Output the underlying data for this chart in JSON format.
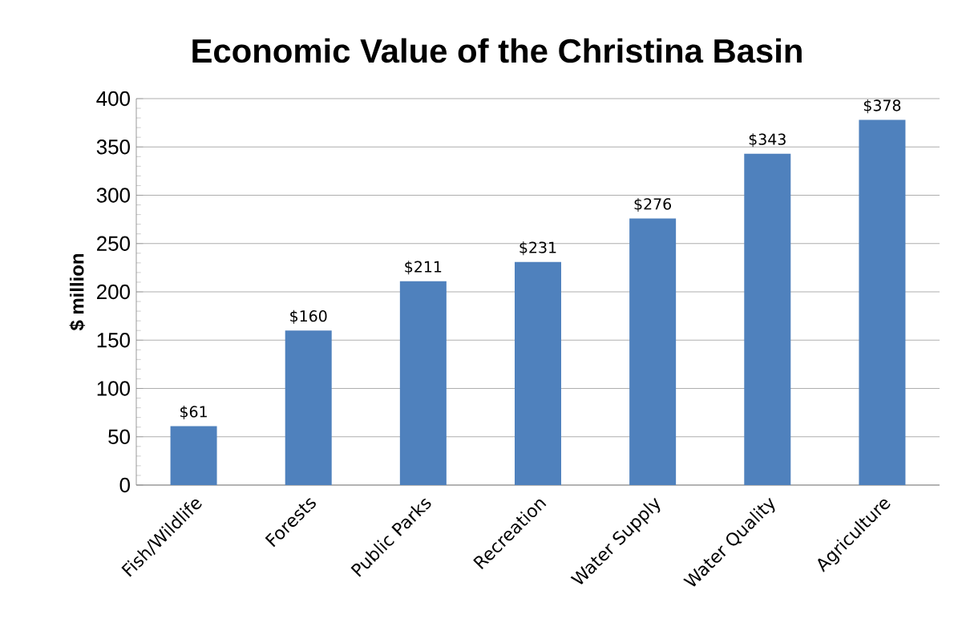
{
  "chart_data": {
    "type": "bar",
    "title": "Economic Value of the Christina Basin",
    "ylabel": "$ million",
    "categories": [
      "Fish/Wildlife",
      "Forests",
      "Public Parks",
      "Recreation",
      "Water Supply",
      "Water Quality",
      "Agriculture"
    ],
    "values": [
      61,
      160,
      211,
      231,
      276,
      343,
      378
    ],
    "value_labels": [
      "$61",
      "$160",
      "$211",
      "$231",
      "$276",
      "$343",
      "$378"
    ],
    "color": "#4f81bd",
    "ylim": [
      0,
      400
    ],
    "yticks": [
      0,
      50,
      100,
      150,
      200,
      250,
      300,
      350,
      400
    ],
    "grid": "y"
  }
}
